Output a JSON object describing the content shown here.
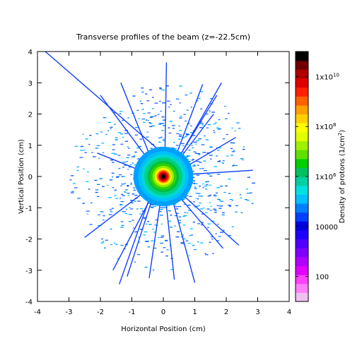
{
  "chart_data": {
    "type": "heatmap",
    "title": "Transverse  profiles of the beam (z=-22.5cm)",
    "xlabel": "Horizontal Position (cm)",
    "ylabel": "Vertical Position (cm)",
    "xlim": [
      -4,
      4
    ],
    "ylim": [
      -4,
      4
    ],
    "x_ticks": [
      "-4",
      "-3",
      "-2",
      "-1",
      "0",
      "1",
      "2",
      "3",
      "4"
    ],
    "y_ticks": [
      "4",
      "3",
      "2",
      "1",
      "0",
      "-1",
      "-2",
      "-3",
      "-4"
    ],
    "grid": false,
    "colorbar": {
      "label": "Density of protons (1/cm",
      "label_superscript": "2",
      "label_close": ")",
      "scale": "log",
      "range": [
        10,
        100000000000
      ],
      "tick_labels": [
        {
          "value": 100,
          "base": "100",
          "exp": ""
        },
        {
          "value": 10000,
          "base": "10000",
          "exp": ""
        },
        {
          "value": 1000000,
          "base": "1x10",
          "exp": "6"
        },
        {
          "value": 100000000,
          "base": "1x10",
          "exp": "8"
        },
        {
          "value": 10000000000,
          "base": "1x10",
          "exp": "10"
        }
      ],
      "colors": [
        "#f0c0f0",
        "#ff80ff",
        "#ff40ff",
        "#e000ff",
        "#b000ff",
        "#8000ff",
        "#5000ff",
        "#2000ff",
        "#0000e0",
        "#0040ff",
        "#0080ff",
        "#00c0ff",
        "#00e0e0",
        "#00d0a0",
        "#00c060",
        "#00d000",
        "#60e000",
        "#a0f000",
        "#e0ff00",
        "#ffff00",
        "#ffd000",
        "#ffa000",
        "#ff6000",
        "#ff2000",
        "#e00000",
        "#b00000",
        "#700000",
        "#000000"
      ]
    },
    "beam_center": [
      0.0,
      0.0
    ],
    "streaks": [
      {
        "x1": -3.75,
        "y1": 4.0,
        "x2": -0.2,
        "y2": 0.9
      },
      {
        "x1": -1.4,
        "y1": -3.45,
        "x2": -0.3,
        "y2": -0.3
      },
      {
        "x1": -1.15,
        "y1": -3.2,
        "x2": -0.25,
        "y2": -0.4
      },
      {
        "x1": 1.0,
        "y1": -3.4,
        "x2": 0.2,
        "y2": -0.4
      },
      {
        "x1": 1.25,
        "y1": 2.95,
        "x2": 0.3,
        "y2": 0.4
      },
      {
        "x1": 1.7,
        "y1": 2.6,
        "x2": 0.3,
        "y2": 0.3
      },
      {
        "x1": 1.85,
        "y1": 3.0,
        "x2": 0.35,
        "y2": 0.35
      },
      {
        "x1": -1.35,
        "y1": 3.0,
        "x2": -0.3,
        "y2": 0.35
      },
      {
        "x1": -2.0,
        "y1": 2.6,
        "x2": -0.3,
        "y2": 0.3
      },
      {
        "x1": 2.4,
        "y1": -2.2,
        "x2": 0.35,
        "y2": -0.35
      },
      {
        "x1": -2.5,
        "y1": -1.95,
        "x2": -0.35,
        "y2": -0.3
      },
      {
        "x1": 2.85,
        "y1": 0.2,
        "x2": 0.5,
        "y2": 0.05
      },
      {
        "x1": 0.1,
        "y1": 3.65,
        "x2": 0.05,
        "y2": 0.6
      },
      {
        "x1": 1.9,
        "y1": -2.3,
        "x2": 0.3,
        "y2": -0.4
      },
      {
        "x1": -2.1,
        "y1": 0.75,
        "x2": -0.5,
        "y2": 0.1
      },
      {
        "x1": 2.3,
        "y1": 1.25,
        "x2": 0.45,
        "y2": 0.15
      },
      {
        "x1": -0.45,
        "y1": -3.25,
        "x2": -0.05,
        "y2": -0.5
      },
      {
        "x1": 0.35,
        "y1": -3.3,
        "x2": 0.05,
        "y2": -0.5
      },
      {
        "x1": -1.6,
        "y1": -3.0,
        "x2": -0.3,
        "y2": -0.5
      },
      {
        "x1": 1.6,
        "y1": 2.0,
        "x2": 0.35,
        "y2": 0.35
      }
    ]
  }
}
